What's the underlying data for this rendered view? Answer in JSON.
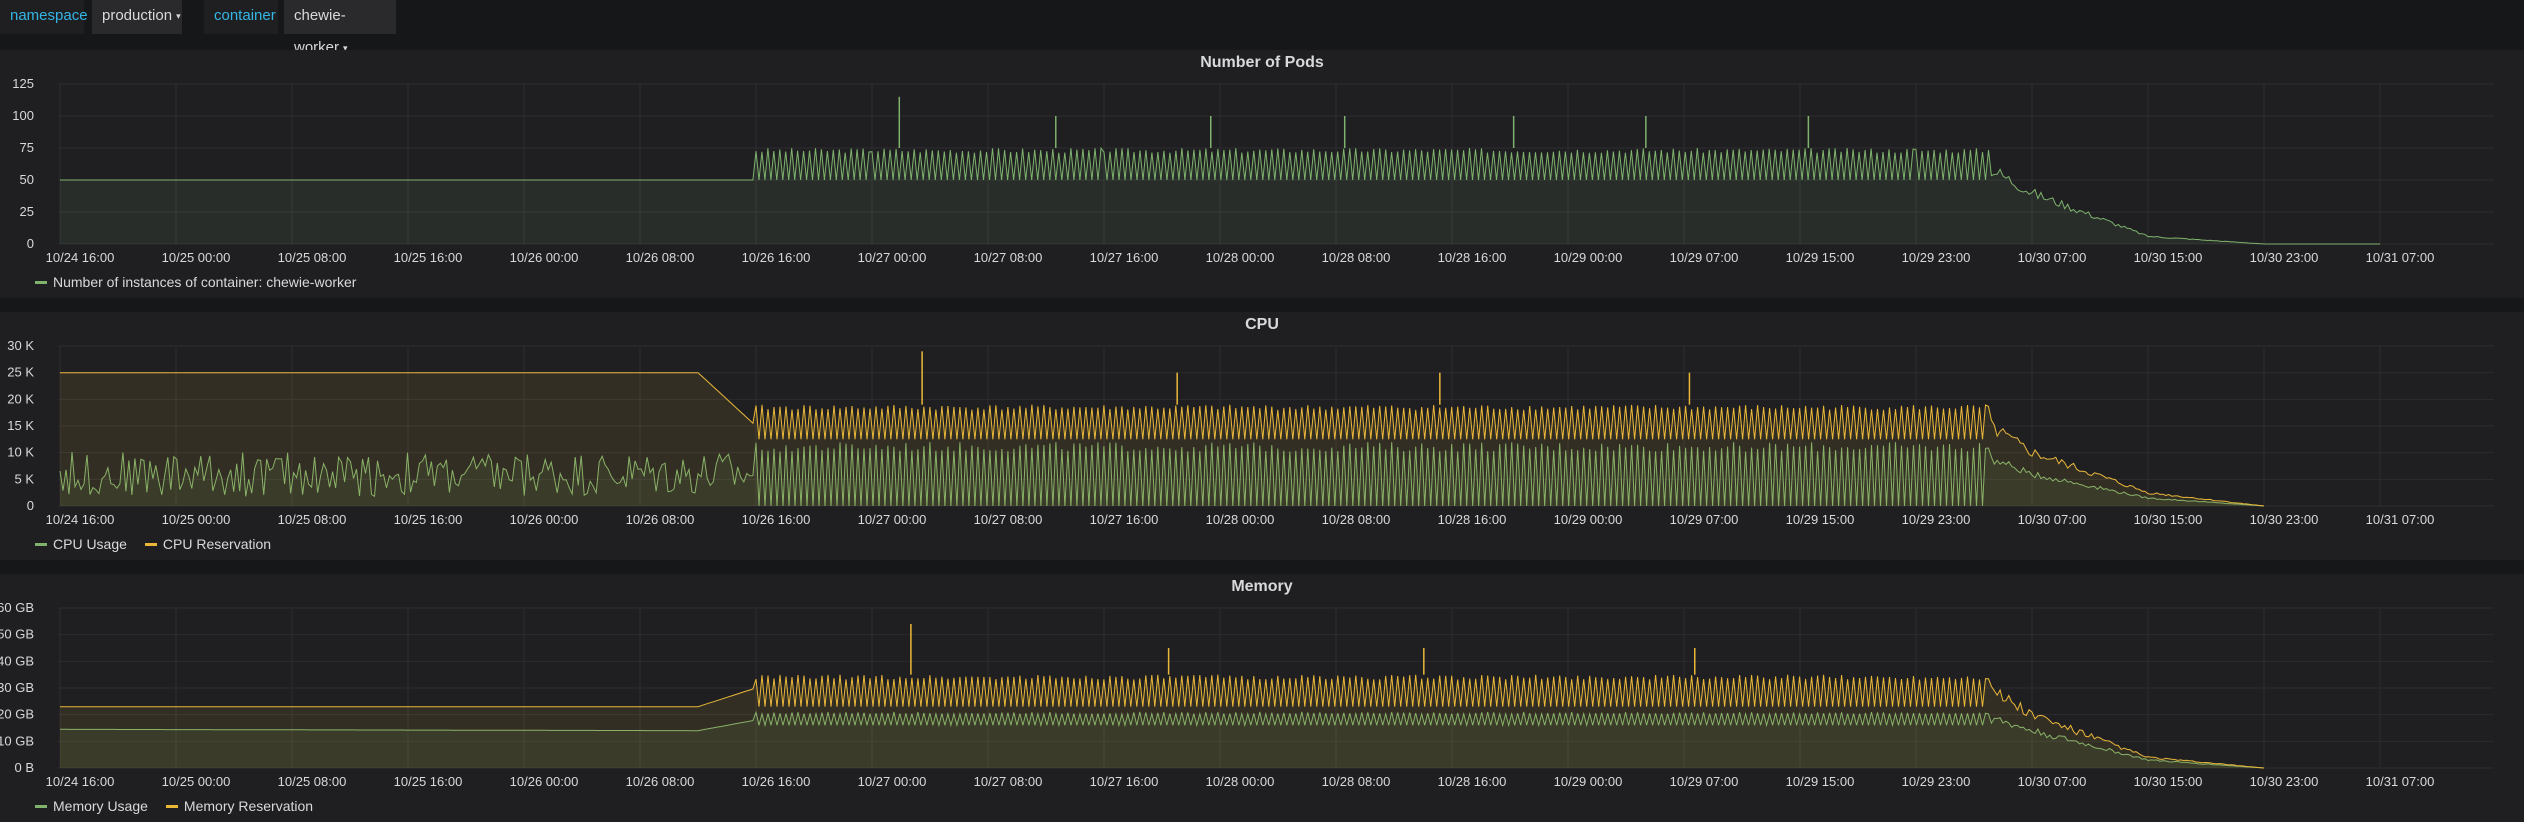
{
  "variables": {
    "namespace_label": "namespace",
    "namespace_value": "production",
    "container_label": "container",
    "container_value": "chewie-worker"
  },
  "colors": {
    "green": "#7eb26d",
    "yellow": "#eab839",
    "grid": "#2d2d30",
    "link_blue": "#33b5e5"
  },
  "x_ticks": [
    "10/24 16:00",
    "10/25 00:00",
    "10/25 08:00",
    "10/25 16:00",
    "10/26 00:00",
    "10/26 08:00",
    "10/26 16:00",
    "10/27 00:00",
    "10/27 08:00",
    "10/27 16:00",
    "10/28 00:00",
    "10/28 08:00",
    "10/28 16:00",
    "10/29 00:00",
    "10/29 07:00",
    "10/29 15:00",
    "10/29 23:00",
    "10/30 07:00",
    "10/30 15:00",
    "10/30 23:00",
    "10/31 07:00"
  ],
  "chart_data": [
    {
      "type": "area",
      "title": "Number of Pods",
      "y_ticks": [
        "0",
        "25",
        "50",
        "75",
        "100",
        "125"
      ],
      "ylim": [
        0,
        125
      ],
      "grid": true,
      "legend_placement": "bottom-left",
      "series": [
        {
          "name": "Number of instances of container: chewie-worker",
          "color": "#7eb26d",
          "x": [
            "10/24 16:00",
            "10/26 12:00",
            "10/26 16:00",
            "10/27 00:00",
            "10/27 16:00",
            "10/29 23:00",
            "10/30 04:00",
            "10/30 07:00",
            "10/30 15:00",
            "10/30 23:00",
            "10/31 07:00"
          ],
          "values": [
            50,
            50,
            50,
            60,
            60,
            60,
            60,
            40,
            6,
            0,
            0
          ],
          "oscillation_range": [
            50,
            75
          ],
          "spikes": [
            115,
            100,
            100,
            100,
            100,
            100,
            100
          ]
        }
      ]
    },
    {
      "type": "area",
      "title": "CPU",
      "y_ticks": [
        "0",
        "5 K",
        "10 K",
        "15 K",
        "20 K",
        "25 K",
        "30 K"
      ],
      "ylim": [
        0,
        30000
      ],
      "grid": true,
      "legend_placement": "bottom-left",
      "series": [
        {
          "name": "CPU Usage",
          "color": "#7eb26d",
          "x": [
            "10/24 16:00",
            "10/26 12:00",
            "10/26 16:00",
            "10/30 04:00",
            "10/30 07:00",
            "10/30 15:00",
            "10/30 23:00"
          ],
          "values": [
            6000,
            6000,
            8500,
            9000,
            6000,
            1500,
            0
          ],
          "oscillation_range": [
            0,
            12000
          ]
        },
        {
          "name": "CPU Reservation",
          "color": "#eab839",
          "x": [
            "10/24 16:00",
            "10/26 12:00",
            "10/26 16:00",
            "10/30 04:00",
            "10/30 07:00",
            "10/30 15:00",
            "10/30 23:00"
          ],
          "values": [
            25000,
            25000,
            15000,
            15000,
            10000,
            2500,
            0
          ],
          "oscillation_range": [
            12500,
            19000
          ],
          "spikes": [
            29000,
            25000,
            25000,
            25000
          ]
        }
      ]
    },
    {
      "type": "area",
      "title": "Memory",
      "y_ticks": [
        "0 B",
        "10 GB",
        "20 GB",
        "30 GB",
        "40 GB",
        "50 GB",
        "60 GB"
      ],
      "ylim": [
        0,
        60
      ],
      "y_unit": "GB",
      "grid": true,
      "legend_placement": "bottom-left",
      "series": [
        {
          "name": "Memory Usage",
          "color": "#7eb26d",
          "x": [
            "10/24 16:00",
            "10/26 12:00",
            "10/26 16:00",
            "10/30 04:00",
            "10/30 07:00",
            "10/30 15:00",
            "10/30 23:00"
          ],
          "values": [
            14.5,
            14,
            18,
            19,
            14,
            3,
            0
          ],
          "oscillation_range": [
            16,
            21
          ]
        },
        {
          "name": "Memory Reservation",
          "color": "#eab839",
          "x": [
            "10/24 16:00",
            "10/26 12:00",
            "10/26 16:00",
            "10/30 04:00",
            "10/30 07:00",
            "10/30 15:00",
            "10/30 23:00"
          ],
          "values": [
            23,
            23,
            30,
            30,
            20,
            4,
            0
          ],
          "oscillation_range": [
            23,
            35
          ],
          "spikes": [
            54,
            45,
            45,
            45
          ]
        }
      ]
    }
  ]
}
